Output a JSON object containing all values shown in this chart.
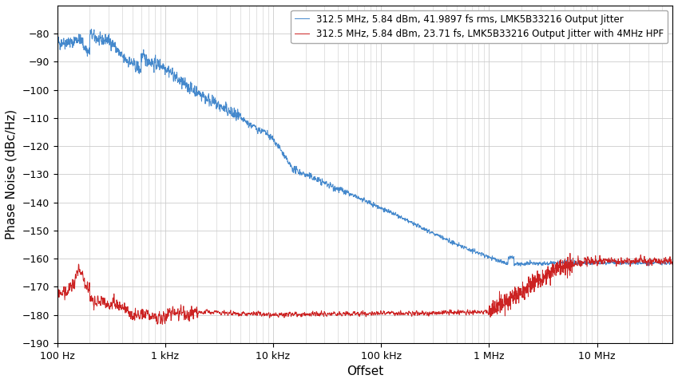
{
  "xlabel": "Offset",
  "ylabel": "Phase Noise (dBc/Hz)",
  "xlim": [
    100,
    50000000
  ],
  "ylim": [
    -190,
    -70
  ],
  "yticks": [
    -190,
    -180,
    -170,
    -160,
    -150,
    -140,
    -130,
    -120,
    -110,
    -100,
    -90,
    -80
  ],
  "xtick_positions": [
    100,
    1000,
    10000,
    100000,
    1000000,
    10000000
  ],
  "xtick_labels": [
    "100 Hz",
    "1 kHz",
    "10 kHz",
    "100 kHz",
    "1 MHz",
    "10 MHz"
  ],
  "legend_blue": "312.5 MHz, 5.84 dBm, 41.9897 fs rms, LMK5B33216 Output Jitter",
  "legend_red": "312.5 MHz, 5.84 dBm, 23.71 fs, LMK5B33216 Output Jitter with 4MHz HPF",
  "blue_color": "#4488CC",
  "red_color": "#CC2222",
  "grid_color": "#cccccc",
  "bg_color": "#ffffff",
  "noise_seed": 1
}
